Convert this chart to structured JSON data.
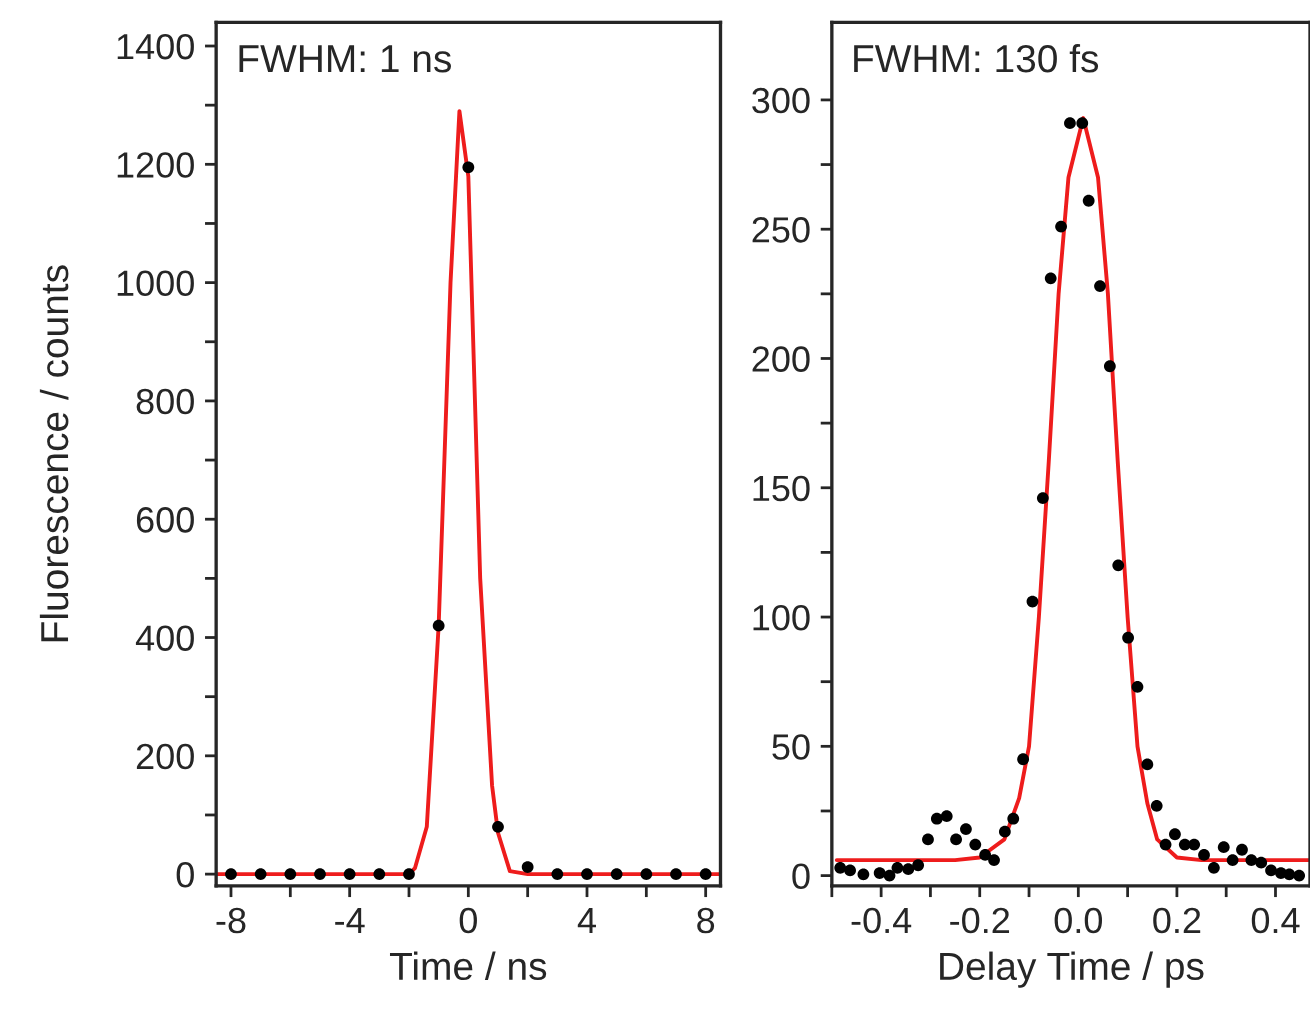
{
  "chart_data": [
    {
      "type": "scatter",
      "xlabel": "Time / ns",
      "ylabel": "Fluorescence / counts",
      "annotations": [
        "FWHM: 1 ns"
      ],
      "xlim": [
        -8.5,
        8.5
      ],
      "ylim": [
        -20,
        1440
      ],
      "xticks": [
        -8,
        {
          "value": -6,
          "label": null
        },
        -4,
        {
          "value": -2,
          "label": null
        },
        0,
        {
          "value": 2,
          "label": null
        },
        4,
        {
          "value": 6,
          "label": null
        },
        8
      ],
      "yticks": [
        0,
        {
          "value": 100,
          "label": null
        },
        200,
        {
          "value": 300,
          "label": null
        },
        400,
        {
          "value": 500,
          "label": null
        },
        600,
        {
          "value": 700,
          "label": null
        },
        800,
        {
          "value": 900,
          "label": null
        },
        1000,
        {
          "value": 1100,
          "label": null
        },
        1200,
        {
          "value": 1300,
          "label": null
        },
        1400
      ],
      "grid": false,
      "legend": false,
      "series": [
        {
          "type": "line",
          "color": "#ee1c1c",
          "marker": "none",
          "line_style": "solid",
          "x": [
            -8.5,
            -2,
            -1.8,
            -1.4,
            -1,
            -0.6,
            -0.3,
            0,
            0.4,
            0.8,
            1,
            1.4,
            2,
            8.5
          ],
          "values": [
            0,
            0,
            10,
            80,
            420,
            1000,
            1290,
            1180,
            500,
            150,
            70,
            5,
            0,
            0
          ]
        },
        {
          "color": "#000000",
          "marker": "circle",
          "x": [
            -8,
            -7,
            -6,
            -5,
            -4,
            -3,
            -2,
            -1,
            0,
            1,
            2,
            3,
            4,
            5,
            6,
            7,
            8
          ],
          "values": [
            0,
            0,
            0,
            0,
            0,
            0,
            0,
            420,
            1195,
            80,
            12,
            0,
            0,
            0,
            0,
            0,
            0
          ]
        }
      ]
    },
    {
      "type": "scatter",
      "xlabel": "Delay Time / ps",
      "annotations": [
        "FWHM: 130 fs"
      ],
      "xlim": [
        -0.5,
        0.47
      ],
      "ylim": [
        -4,
        330
      ],
      "xticks": [
        {
          "value": -0.5,
          "label": null
        },
        -0.4,
        {
          "value": -0.3,
          "label": null
        },
        -0.2,
        {
          "value": -0.1,
          "label": null
        },
        {
          "value": 0,
          "label": "0.0"
        },
        {
          "value": 0.1,
          "label": null
        },
        0.2,
        {
          "value": 0.3,
          "label": null
        },
        0.4
      ],
      "yticks": [
        0,
        {
          "value": 25,
          "label": null
        },
        50,
        {
          "value": 75,
          "label": null
        },
        100,
        {
          "value": 125,
          "label": null
        },
        150,
        {
          "value": 175,
          "label": null
        },
        200,
        {
          "value": 225,
          "label": null
        },
        250,
        {
          "value": 275,
          "label": null
        },
        300
      ],
      "grid": false,
      "legend": false,
      "series": [
        {
          "type": "line",
          "color": "#ee1c1c",
          "marker": "none",
          "line_style": "solid",
          "x": [
            -0.49,
            -0.25,
            -0.2,
            -0.15,
            -0.12,
            -0.1,
            -0.08,
            -0.06,
            -0.04,
            -0.02,
            0.01,
            0.04,
            0.06,
            0.08,
            0.1,
            0.12,
            0.14,
            0.16,
            0.2,
            0.25,
            0.47
          ],
          "values": [
            6,
            6,
            7,
            14,
            30,
            50,
            100,
            160,
            225,
            270,
            293,
            270,
            225,
            160,
            100,
            50,
            28,
            14,
            7,
            6,
            6
          ]
        },
        {
          "color": "#000000",
          "marker": "circle",
          "x": [
            -0.483,
            -0.463,
            -0.436,
            -0.403,
            -0.383,
            -0.367,
            -0.345,
            -0.325,
            -0.305,
            -0.287,
            -0.267,
            -0.248,
            -0.228,
            -0.209,
            -0.189,
            -0.171,
            -0.149,
            -0.132,
            -0.112,
            -0.093,
            -0.072,
            -0.056,
            -0.035,
            -0.017,
            0.008,
            0.021,
            0.044,
            0.064,
            0.081,
            0.101,
            0.12,
            0.14,
            0.159,
            0.177,
            0.196,
            0.216,
            0.235,
            0.255,
            0.275,
            0.295,
            0.313,
            0.332,
            0.351,
            0.371,
            0.391,
            0.411,
            0.428,
            0.448
          ],
          "values": [
            3,
            2,
            0.5,
            1,
            0,
            3,
            2.5,
            4,
            14,
            22,
            23,
            14,
            18,
            12,
            8,
            6,
            17,
            22,
            45,
            106,
            146,
            231,
            251,
            291,
            291,
            261,
            228,
            197,
            120,
            92,
            73,
            43,
            27,
            12,
            16,
            12,
            12,
            8,
            3,
            11,
            6,
            10,
            6,
            5,
            2,
            1,
            0.5,
            0
          ]
        }
      ]
    }
  ]
}
